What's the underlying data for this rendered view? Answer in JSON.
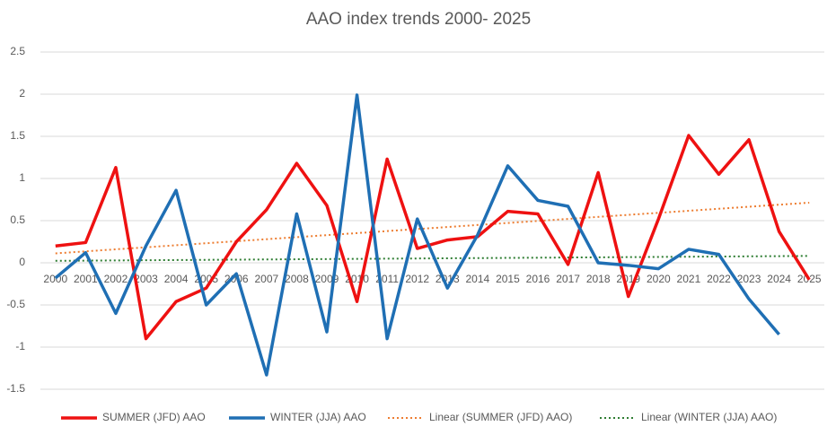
{
  "chart_data": {
    "type": "line",
    "title": "AAO index trends 2000- 2025",
    "categories": [
      "2000",
      "2001",
      "2002",
      "2003",
      "2004",
      "2005",
      "2006",
      "2007",
      "2008",
      "2009",
      "2010",
      "2011",
      "2012",
      "2013",
      "2014",
      "2015",
      "2016",
      "2017",
      "2018",
      "2019",
      "2020",
      "2021",
      "2022",
      "2023",
      "2024",
      "2025"
    ],
    "series": [
      {
        "name": "SUMMER (JFD) AAO",
        "color": "#ee1111",
        "values": [
          0.2,
          0.24,
          1.13,
          -0.9,
          -0.46,
          -0.3,
          0.25,
          0.63,
          1.18,
          0.68,
          -0.46,
          1.23,
          0.17,
          0.27,
          0.31,
          0.61,
          0.58,
          -0.02,
          1.07,
          -0.4,
          0.52,
          1.51,
          1.05,
          1.46,
          0.37,
          -0.2
        ],
        "trendline": {
          "name": "Linear (SUMMER (JFD) AAO)",
          "color": "#ed7d31"
        }
      },
      {
        "name": "WINTER (JJA) AAO",
        "color": "#1f6fb4",
        "values": [
          -0.18,
          0.12,
          -0.6,
          0.2,
          0.86,
          -0.5,
          -0.13,
          -1.33,
          0.58,
          -0.82,
          1.99,
          -0.9,
          0.52,
          -0.3,
          0.33,
          1.15,
          0.74,
          0.67,
          0.0,
          -0.03,
          -0.07,
          0.16,
          0.1,
          -0.43,
          -0.85,
          null
        ],
        "trendline": {
          "name": "Linear (WINTER (JJA) AAO)",
          "color": "#2e7d32"
        }
      }
    ],
    "ylim": [
      -1.5,
      2.5
    ],
    "yticks": [
      -1.5,
      -1,
      -0.5,
      0,
      0.5,
      1,
      1.5,
      2,
      2.5
    ],
    "grid": true,
    "legend": "bottom"
  }
}
